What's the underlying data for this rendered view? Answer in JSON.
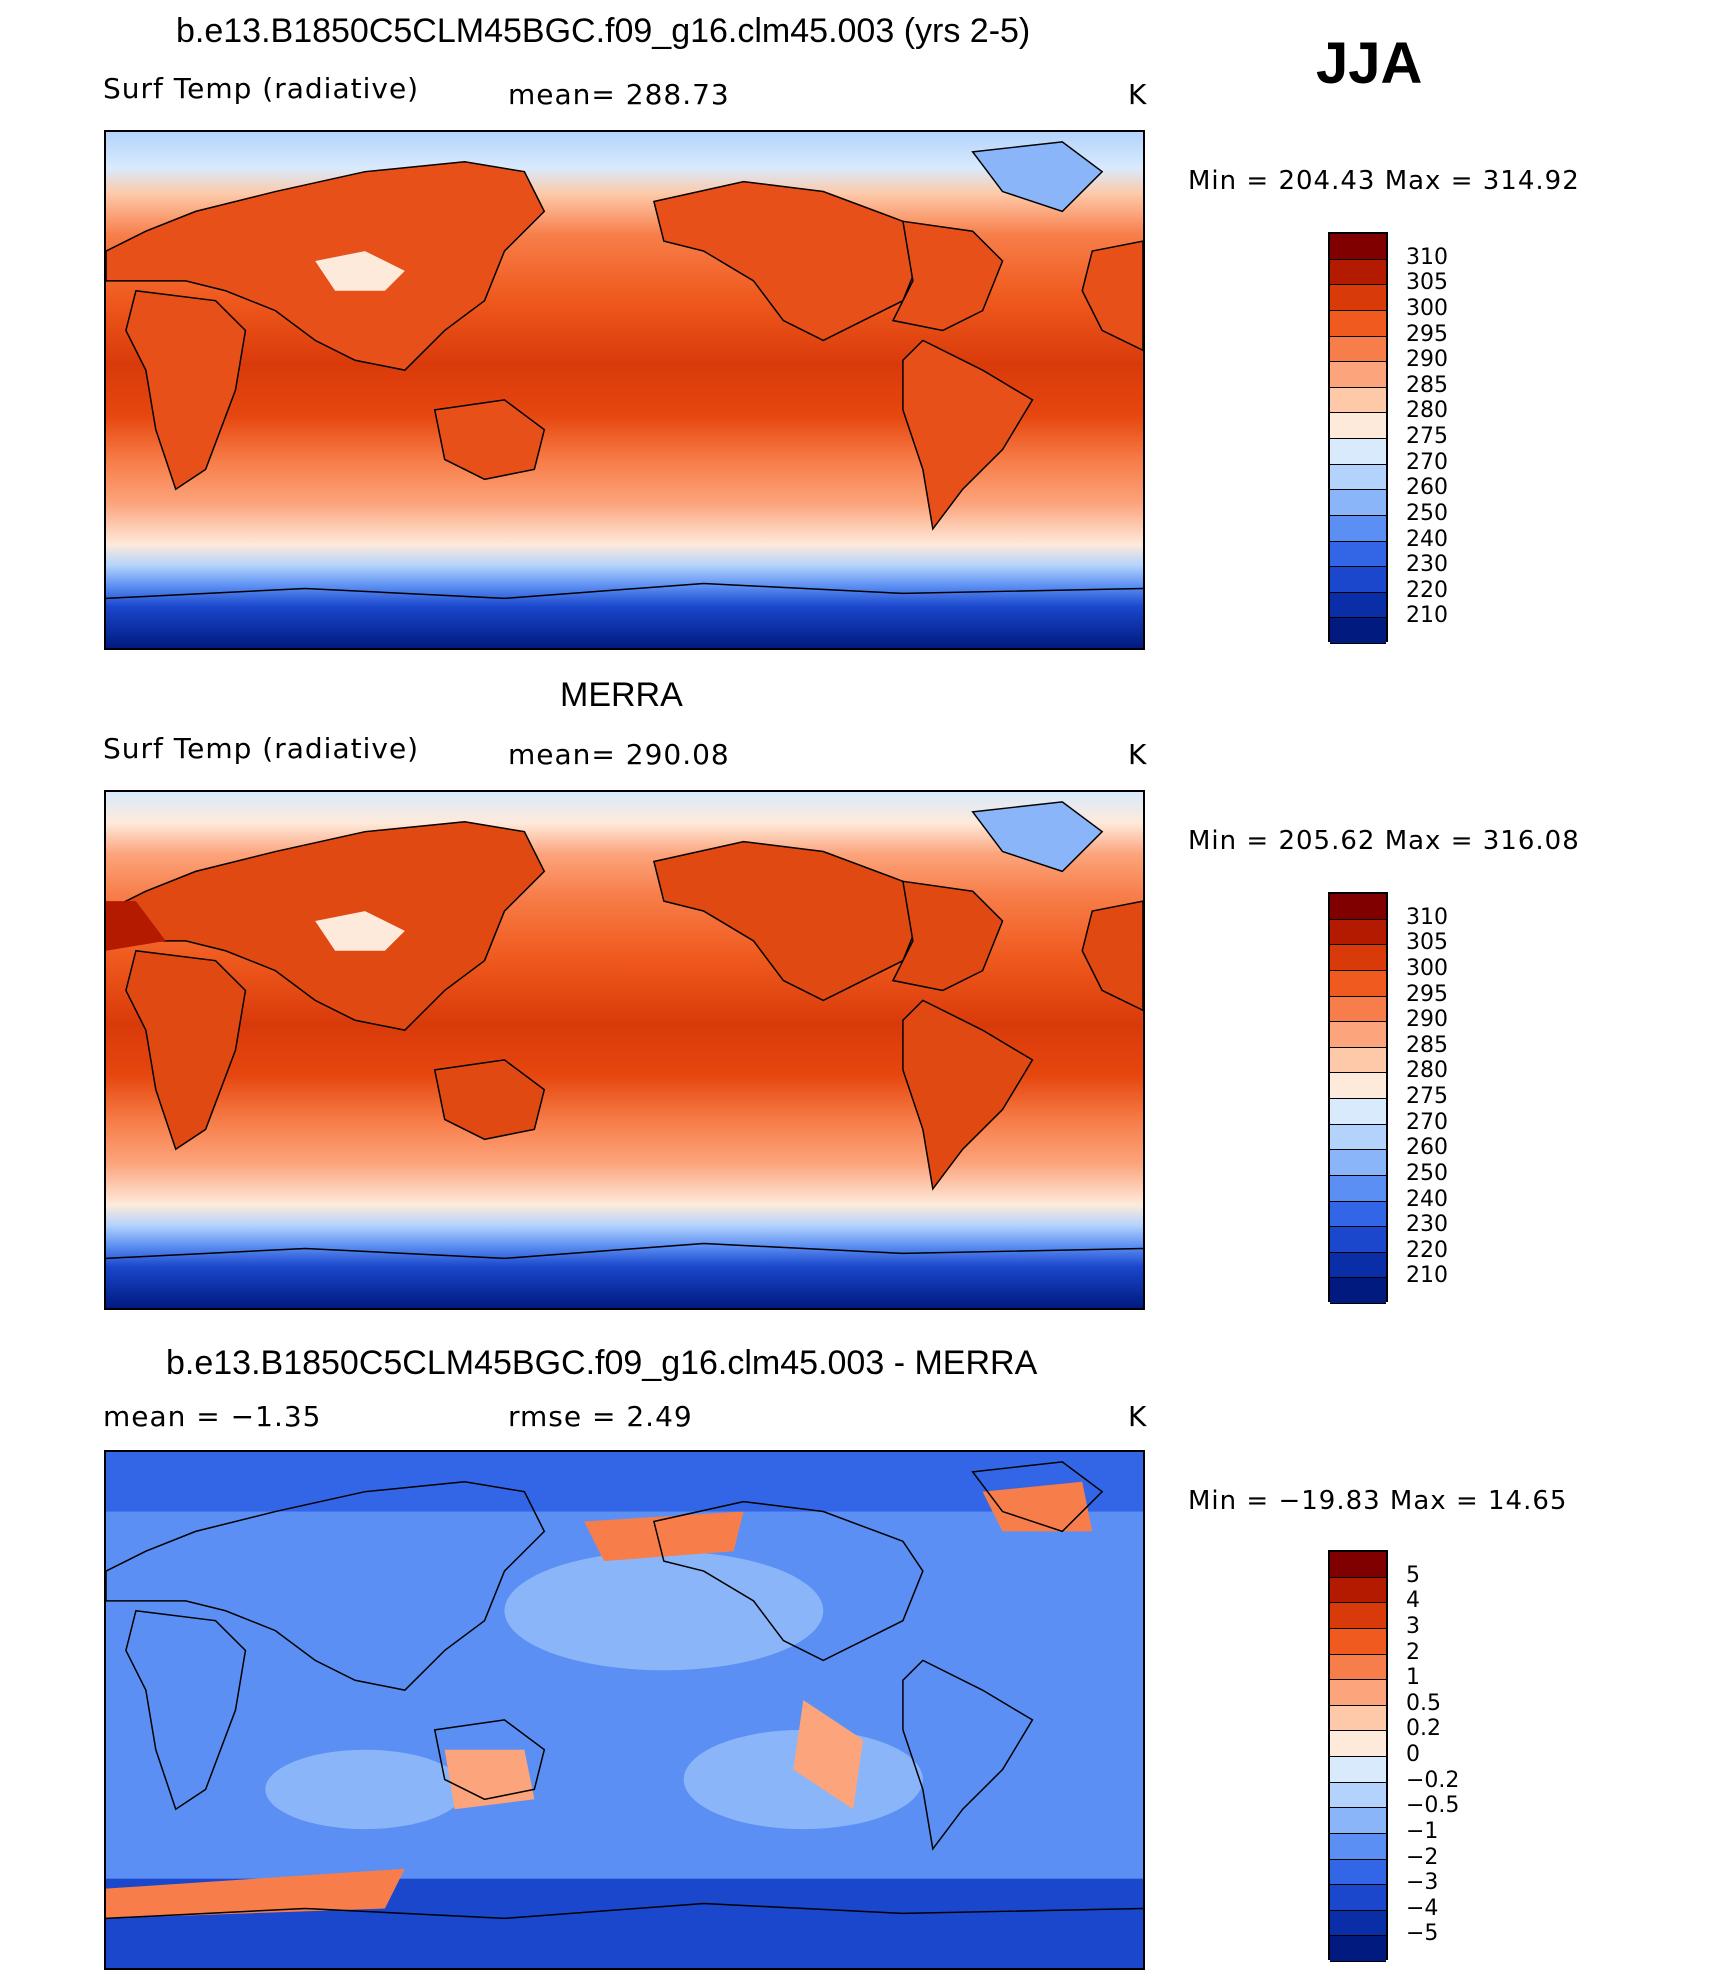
{
  "season": "JJA",
  "panels": [
    {
      "title": "b.e13.B1850C5CLM45BGC.f09_g16.clm45.003 (yrs 2-5)",
      "left_label": "Surf Temp (radiative)",
      "center_label": "mean=  288.73",
      "units": "K",
      "minmax": "Min  =  204.43  Max  =  314.92",
      "field": "model"
    },
    {
      "title": "MERRA",
      "left_label": "Surf Temp (radiative)",
      "center_label": "mean=  290.08",
      "units": "K",
      "minmax": "Min  =  205.62  Max  =  316.08",
      "field": "obs"
    },
    {
      "title": "b.e13.B1850C5CLM45BGC.f09_g16.clm45.003 - MERRA",
      "left_label": "mean  =    −1.35",
      "center_label": "rmse  =     2.49",
      "units": "K",
      "minmax": "Min  =  −19.83  Max  =    14.65",
      "field": "diff"
    }
  ],
  "colorbars": {
    "temp": {
      "labels": [
        "310",
        "305",
        "300",
        "295",
        "290",
        "285",
        "280",
        "275",
        "270",
        "260",
        "250",
        "240",
        "230",
        "220",
        "210"
      ],
      "colors": [
        "#800000",
        "#b31a00",
        "#d93a0a",
        "#f05a1e",
        "#f77e4a",
        "#fca47c",
        "#fdc9a8",
        "#feeadb",
        "#d9eafd",
        "#b3d3fc",
        "#8ab6f9",
        "#5c8ff3",
        "#3366e6",
        "#1a47cc",
        "#0a2ea8",
        "#001a80"
      ]
    },
    "diff": {
      "labels": [
        "5",
        "4",
        "3",
        "2",
        "1",
        "0.5",
        "0.2",
        "0",
        "−0.2",
        "−0.5",
        "−1",
        "−2",
        "−3",
        "−4",
        "−5"
      ],
      "colors": [
        "#800000",
        "#b31a00",
        "#d93a0a",
        "#f05a1e",
        "#f77e4a",
        "#fca47c",
        "#fdc9a8",
        "#feeadb",
        "#d9eafd",
        "#b3d3fc",
        "#8ab6f9",
        "#5c8ff3",
        "#3366e6",
        "#1a47cc",
        "#0a2ea8",
        "#001a80"
      ]
    }
  }
}
